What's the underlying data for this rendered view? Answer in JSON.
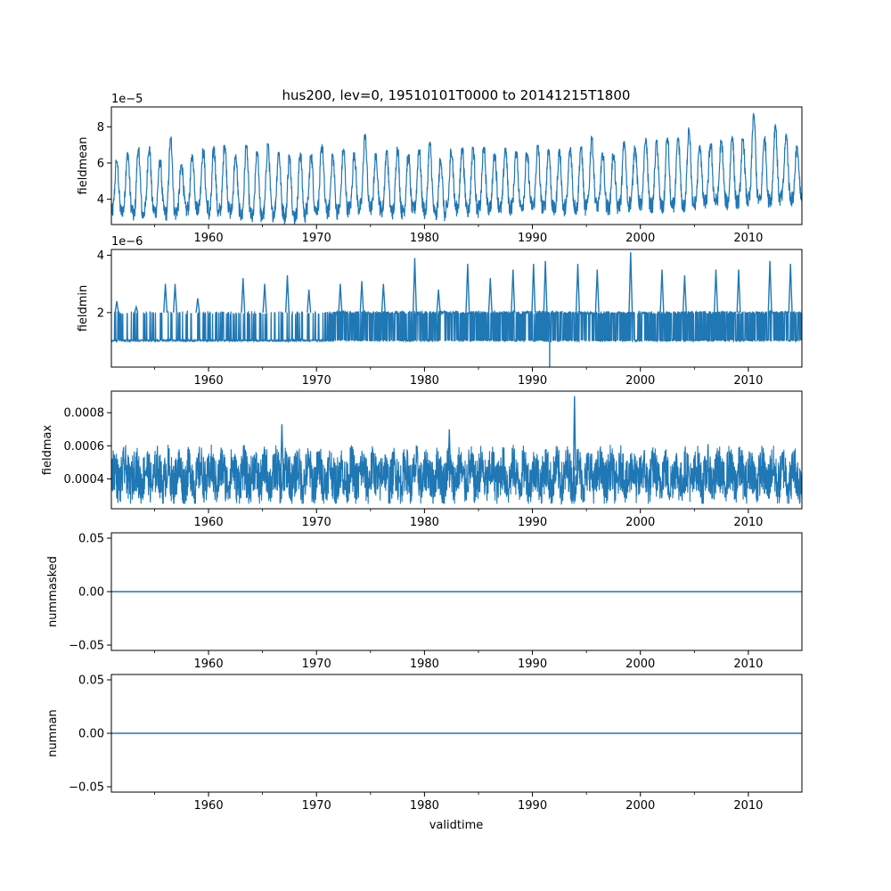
{
  "title": "hus200, lev=0, 19510101T0000 to 20141215T1800",
  "xlabel": "validtime",
  "colors": {
    "line": "#1f77b4",
    "axis": "#000000",
    "background": "#ffffff"
  },
  "chart_data": [
    {
      "type": "line",
      "name": "fieldmean",
      "ylabel": "fieldmean",
      "offset_label": "1e−5",
      "xlim": [
        1951.0,
        2014.96
      ],
      "ylim": [
        2.6,
        9.1
      ],
      "yticks": [
        4,
        6,
        8
      ],
      "ytick_labels": [
        "4",
        "6",
        "8"
      ],
      "x_ticks": [
        1960,
        1970,
        1980,
        1990,
        2000,
        2010
      ],
      "x_tick_labels": [
        "1960",
        "1970",
        "1980",
        "1990",
        "2000",
        "2010"
      ],
      "series_summary": {
        "description": "seasonal cycle, annual",
        "seasonal_min": [
          3.3,
          3.4,
          3.1,
          3.4,
          3.3,
          3.2,
          3.4,
          3.5,
          3.6,
          3.2,
          3.4,
          3.3,
          3.1,
          3.0,
          3.2,
          3.3,
          3.0,
          3.1,
          3.4,
          3.5,
          3.3,
          3.4,
          3.5,
          3.6,
          3.5,
          3.4,
          3.3,
          3.4,
          3.5,
          3.3,
          3.1,
          3.5,
          3.6,
          3.4,
          3.5,
          3.6,
          3.5,
          3.6,
          3.7,
          3.6,
          3.5,
          3.4,
          3.6,
          3.5,
          3.7,
          3.6,
          3.5,
          3.7,
          3.8,
          3.7,
          3.6,
          3.5,
          3.7,
          3.6,
          3.8,
          3.9,
          3.9,
          3.8,
          3.9,
          4.0,
          3.9,
          4.0,
          4.1,
          4.0
        ],
        "seasonal_max": [
          6.2,
          6.7,
          6.9,
          7.0,
          6.2,
          7.5,
          6.0,
          6.5,
          6.8,
          6.9,
          7.1,
          6.5,
          7.0,
          6.8,
          7.1,
          6.7,
          6.5,
          6.6,
          6.5,
          7.0,
          6.5,
          6.8,
          6.6,
          7.7,
          6.6,
          6.7,
          6.9,
          6.5,
          6.8,
          7.2,
          6.3,
          6.8,
          6.9,
          6.9,
          6.9,
          6.6,
          6.9,
          6.8,
          6.6,
          7.0,
          6.8,
          6.8,
          6.9,
          7.0,
          7.5,
          6.6,
          6.6,
          7.2,
          7.0,
          7.4,
          7.3,
          7.5,
          7.4,
          8.0,
          7.1,
          7.1,
          7.3,
          7.5,
          7.4,
          8.8,
          7.5,
          8.1,
          7.6,
          7.0
        ]
      }
    },
    {
      "type": "line",
      "name": "fieldmin",
      "ylabel": "fieldmin",
      "offset_label": "1e−6",
      "xlim": [
        1951.0,
        2014.96
      ],
      "ylim": [
        0.1,
        4.2
      ],
      "yticks": [
        2,
        4
      ],
      "ytick_labels": [
        "2",
        "4"
      ],
      "x_ticks": [
        1960,
        1970,
        1980,
        1990,
        2000,
        2010
      ],
      "x_tick_labels": [
        "1960",
        "1970",
        "1980",
        "1990",
        "2000",
        "2010"
      ],
      "series_summary": {
        "description": "baseline near 1.0 switching between 1 and 2, annual spikes",
        "baseline": 1.0,
        "upper_band": 2.0,
        "spikes": [
          [
            1951.5,
            2.4
          ],
          [
            1953.3,
            2.2
          ],
          [
            1956.0,
            3.0
          ],
          [
            1956.9,
            3.0
          ],
          [
            1959.0,
            2.5
          ],
          [
            1963.2,
            3.2
          ],
          [
            1965.2,
            3.0
          ],
          [
            1967.3,
            3.3
          ],
          [
            1969.3,
            2.8
          ],
          [
            1972.2,
            3.0
          ],
          [
            1974.2,
            3.1
          ],
          [
            1976.2,
            3.0
          ],
          [
            1979.1,
            3.9
          ],
          [
            1981.3,
            2.8
          ],
          [
            1984.0,
            3.7
          ],
          [
            1986.1,
            3.2
          ],
          [
            1988.2,
            3.5
          ],
          [
            1990.1,
            3.7
          ],
          [
            1991.2,
            3.8
          ],
          [
            1994.2,
            3.7
          ],
          [
            1996.0,
            3.5
          ],
          [
            1999.1,
            4.1
          ],
          [
            2002.0,
            3.5
          ],
          [
            2004.1,
            3.3
          ],
          [
            2007.0,
            3.5
          ],
          [
            2009.1,
            3.5
          ],
          [
            2012.0,
            3.8
          ],
          [
            2013.9,
            3.7
          ]
        ],
        "drop": [
          1991.6,
          0.1
        ]
      }
    },
    {
      "type": "line",
      "name": "fieldmax",
      "ylabel": "fieldmax",
      "offset_label": "",
      "xlim": [
        1951.0,
        2014.96
      ],
      "ylim": [
        0.00022,
        0.00093
      ],
      "yticks": [
        0.0004,
        0.0006,
        0.0008
      ],
      "ytick_labels": [
        "0.0004",
        "0.0006",
        "0.0008"
      ],
      "x_ticks": [
        1960,
        1970,
        1980,
        1990,
        2000,
        2010
      ],
      "x_tick_labels": [
        "1960",
        "1970",
        "1980",
        "1990",
        "2000",
        "2010"
      ],
      "series_summary": {
        "description": "noisy band 0.00027 to 0.0006 with annual cycle",
        "band_low": 0.00027,
        "band_high": 0.0006,
        "spikes": [
          [
            1966.8,
            0.00073
          ],
          [
            1982.3,
            0.0007
          ],
          [
            1993.9,
            0.0009
          ]
        ]
      }
    },
    {
      "type": "line",
      "name": "nummasked",
      "ylabel": "nummasked",
      "offset_label": "",
      "xlim": [
        1951.0,
        2014.96
      ],
      "ylim": [
        -0.055,
        0.055
      ],
      "yticks": [
        -0.05,
        0.0,
        0.05
      ],
      "ytick_labels": [
        "−0.05",
        "0.00",
        "0.05"
      ],
      "x_ticks": [
        1960,
        1970,
        1980,
        1990,
        2000,
        2010
      ],
      "x_tick_labels": [
        "1960",
        "1970",
        "1980",
        "1990",
        "2000",
        "2010"
      ],
      "x": [
        1951.0,
        2014.96
      ],
      "values": [
        0,
        0
      ]
    },
    {
      "type": "line",
      "name": "numnan",
      "ylabel": "numnan",
      "offset_label": "",
      "xlim": [
        1951.0,
        2014.96
      ],
      "ylim": [
        -0.055,
        0.055
      ],
      "yticks": [
        -0.05,
        0.0,
        0.05
      ],
      "ytick_labels": [
        "−0.05",
        "0.00",
        "0.05"
      ],
      "x_ticks": [
        1960,
        1970,
        1980,
        1990,
        2000,
        2010
      ],
      "x_tick_labels": [
        "1960",
        "1970",
        "1980",
        "1990",
        "2000",
        "2010"
      ],
      "x": [
        1951.0,
        2014.96
      ],
      "values": [
        0,
        0
      ]
    }
  ]
}
